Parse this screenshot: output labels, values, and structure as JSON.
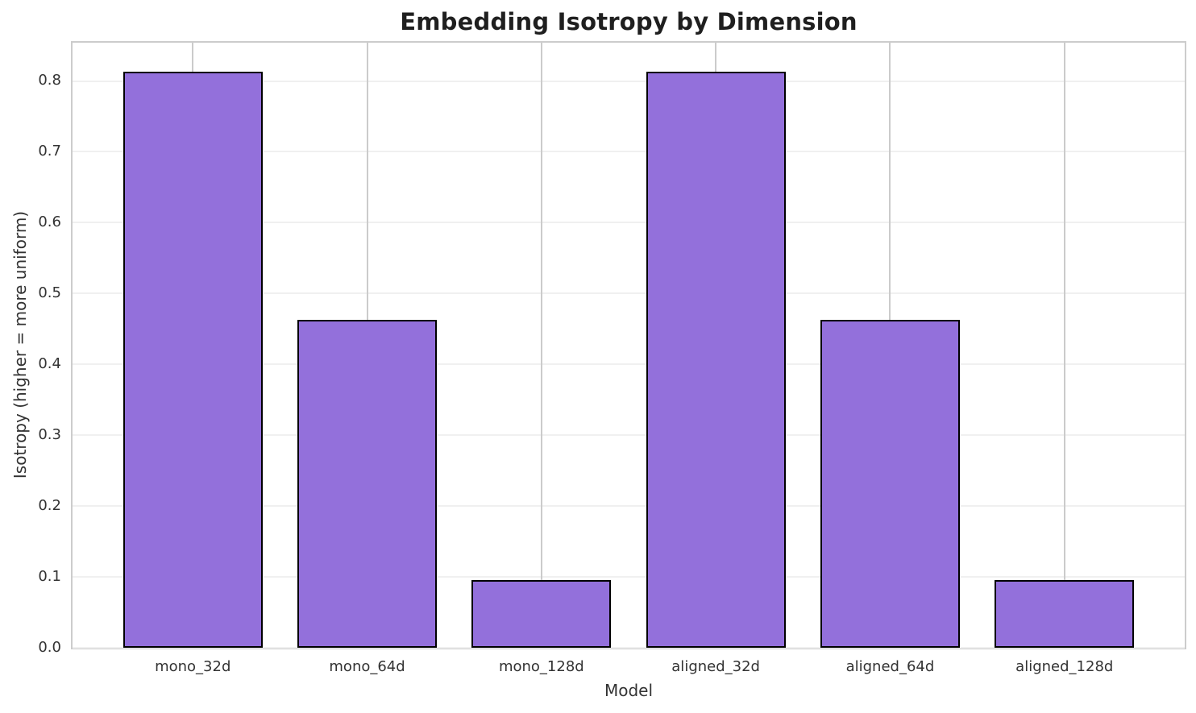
{
  "chart_data": {
    "type": "bar",
    "title": "Embedding Isotropy by Dimension",
    "xlabel": "Model",
    "ylabel": "Isotropy (higher = more uniform)",
    "categories": [
      "mono_32d",
      "mono_64d",
      "mono_128d",
      "aligned_32d",
      "aligned_64d",
      "aligned_128d"
    ],
    "values": [
      0.813,
      0.463,
      0.095,
      0.813,
      0.463,
      0.095
    ],
    "ylim": [
      0,
      0.854
    ],
    "yticks": [
      0.0,
      0.1,
      0.2,
      0.3,
      0.4,
      0.5,
      0.6,
      0.7,
      0.8
    ],
    "ytick_labels": [
      "0.0",
      "0.1",
      "0.2",
      "0.3",
      "0.4",
      "0.5",
      "0.6",
      "0.7",
      "0.8"
    ],
    "grid": true,
    "legend": "none",
    "bar_fill_color": "#9370DB",
    "bar_edge_color": "#000000"
  }
}
